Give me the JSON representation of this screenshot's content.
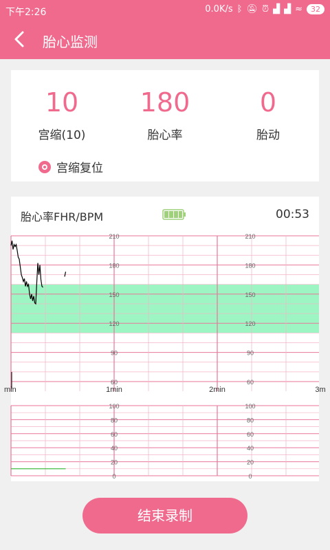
{
  "status_bar": {
    "time": "下午2:26",
    "net_speed": "0.0K/s",
    "battery": "32"
  },
  "app_bar": {
    "title": "胎心监测",
    "back_icon": "chevron-left-icon"
  },
  "stats": [
    {
      "value": "10",
      "label": "宫缩(10)"
    },
    {
      "value": "180",
      "label": "胎心率"
    },
    {
      "value": "0",
      "label": "胎动"
    }
  ],
  "reset": {
    "label": "宫缩复位",
    "icon": "reset-dot-icon"
  },
  "chart": {
    "header_label": "胎心率FHR/BPM",
    "timer": "00:53",
    "battery_icon": "battery-icon"
  },
  "chart_data": [
    {
      "type": "line",
      "ylabel": "胎心率FHR/BPM",
      "ylim": [
        60,
        210
      ],
      "yticks": [
        210,
        180,
        150,
        120,
        90,
        60
      ],
      "x_ticks": [
        "min",
        "1min",
        "2min",
        "3m"
      ],
      "normal_band": [
        110,
        160
      ],
      "band_color": "#9ef5c4",
      "series": [
        {
          "values": [
            [
              0.0,
              200
            ],
            [
              0.01,
              205
            ],
            [
              0.02,
              196
            ],
            [
              0.03,
              201
            ],
            [
              0.04,
              199
            ],
            [
              0.05,
              201
            ],
            [
              0.06,
              195
            ],
            [
              0.07,
              188
            ],
            [
              0.08,
              186
            ],
            [
              0.09,
              178
            ],
            [
              0.1,
              170
            ],
            [
              0.11,
              167
            ],
            [
              0.12,
              163
            ],
            [
              0.13,
              166
            ],
            [
              0.14,
              158
            ],
            [
              0.15,
              163
            ],
            [
              0.16,
              158
            ],
            [
              0.17,
              160
            ],
            [
              0.18,
              150
            ],
            [
              0.19,
              145
            ],
            [
              0.2,
              150
            ],
            [
              0.21,
              143
            ],
            [
              0.22,
              148
            ],
            [
              0.23,
              141
            ],
            [
              0.24,
              140
            ],
            [
              0.25,
              162
            ],
            [
              0.26,
              182
            ],
            [
              0.27,
              170
            ],
            [
              0.28,
              180
            ],
            [
              0.29,
              165
            ],
            [
              0.3,
              158
            ],
            [
              0.31,
              157
            ]
          ]
        },
        {
          "values": [
            [
              0.52,
              168
            ],
            [
              0.53,
              173
            ]
          ]
        }
      ],
      "line_color": "#000000"
    },
    {
      "type": "line",
      "ylim": [
        0,
        100
      ],
      "yticks": [
        100,
        80,
        60,
        40,
        20,
        0
      ],
      "series": [
        {
          "values": [
            [
              0.0,
              10
            ],
            [
              0.53,
              10
            ]
          ]
        }
      ],
      "line_color": "#2fb62f"
    }
  ],
  "end_button": "结束录制",
  "colors": {
    "accent": "#f06a8e",
    "grid_major": "#e8769a",
    "grid_minor": "#f3b3c6"
  }
}
